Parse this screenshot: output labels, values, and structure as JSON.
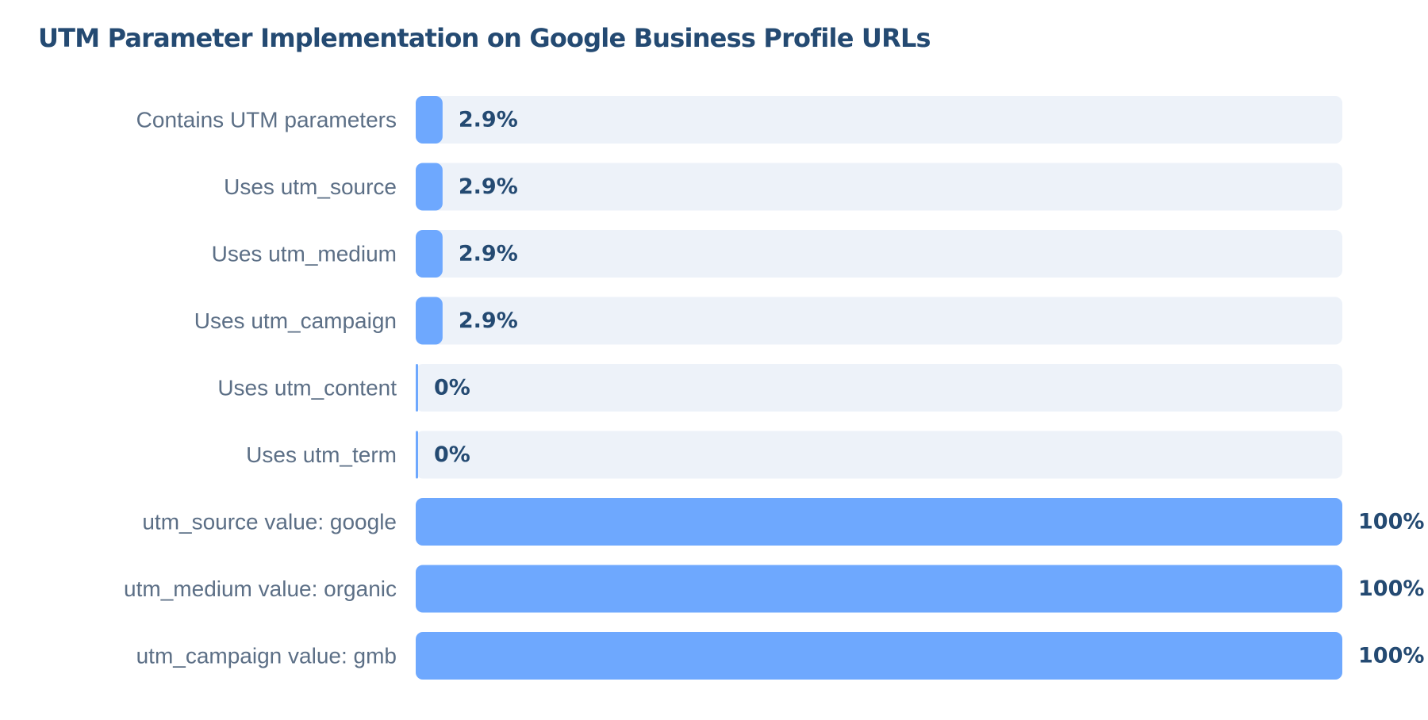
{
  "chart_data": {
    "type": "bar",
    "orientation": "horizontal",
    "title": "UTM Parameter Implementation on Google Business Profile URLs",
    "categories": [
      "Contains UTM parameters",
      "Uses utm_source",
      "Uses utm_medium",
      "Uses utm_campaign",
      "Uses utm_content",
      "Uses utm_term",
      "utm_source value: google",
      "utm_medium value: organic",
      "utm_campaign value: gmb"
    ],
    "values": [
      2.9,
      2.9,
      2.9,
      2.9,
      0,
      0,
      100,
      100,
      100
    ],
    "value_labels": [
      "2.9%",
      "2.9%",
      "2.9%",
      "2.9%",
      "0%",
      "0%",
      "100%",
      "100%",
      "100%"
    ],
    "xlim": [
      0,
      100
    ],
    "grid": false,
    "legend": "none",
    "colors": {
      "bar": "#6ea8fe",
      "track": "#edf2f9",
      "title": "#244a72",
      "category_text": "#5c6f86",
      "value_text": "#244a72"
    }
  }
}
